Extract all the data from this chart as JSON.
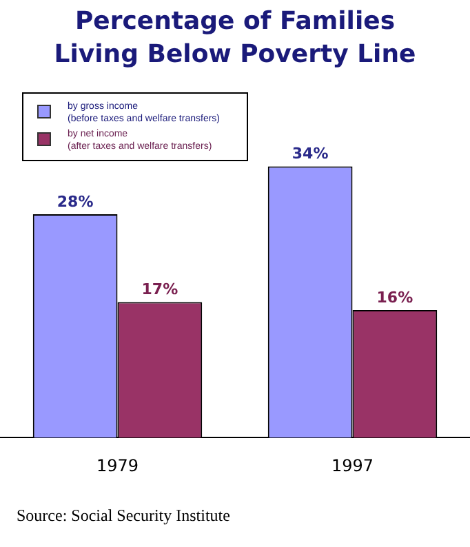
{
  "chart_data": {
    "type": "bar",
    "title": "Percentage of Families\nLiving Below Poverty Line",
    "categories": [
      "1979",
      "1997"
    ],
    "series": [
      {
        "name": "by gross income\n(before taxes and welfare transfers)",
        "color": "#9999ff",
        "values": [
          28,
          34
        ],
        "value_labels": [
          "28%",
          "34%"
        ]
      },
      {
        "name": "by net income\n(after taxes and welfare transfers)",
        "color": "#993366",
        "values": [
          17,
          16
        ],
        "value_labels": [
          "17%",
          "16%"
        ]
      }
    ],
    "legend": "top left",
    "grid": false,
    "annotations": [
      "Source: Social Security Institute"
    ]
  }
}
